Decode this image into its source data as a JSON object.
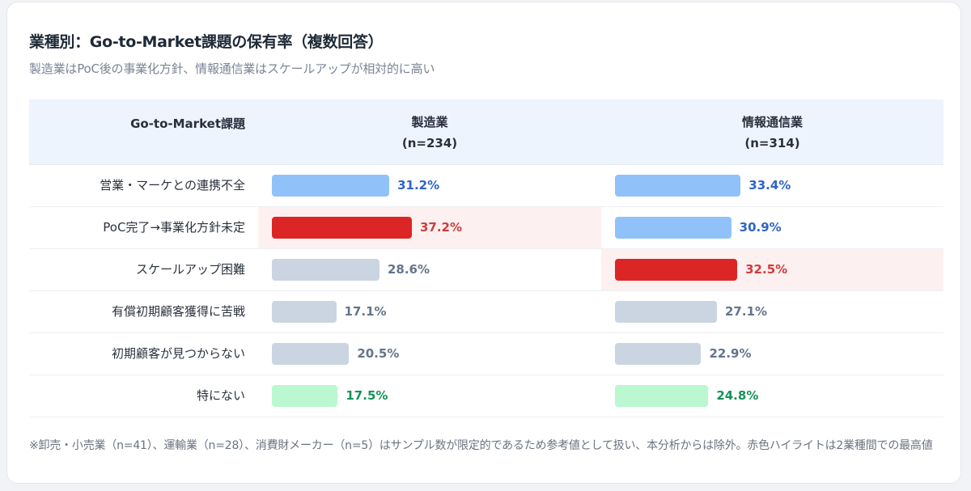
{
  "title": "業種別：Go-to-Market課題の保有率（複数回答）",
  "subtitle": "製造業はPoC後の事業化方針、情報通信業はスケールアップが相対的に高い",
  "table": {
    "header": {
      "label": "Go-to-Market課題",
      "col1_name": "製造業",
      "col1_n": "(n=234)",
      "col2_name": "情報通信業",
      "col2_n": "(n=314)"
    },
    "rows": [
      {
        "label": "営業・マーケとの連携不全",
        "c1": {
          "value": 31.2,
          "text": "31.2%",
          "style": "blue",
          "highlight": false
        },
        "c2": {
          "value": 33.4,
          "text": "33.4%",
          "style": "blue",
          "highlight": false
        }
      },
      {
        "label": "PoC完了→事業化方針未定",
        "c1": {
          "value": 37.2,
          "text": "37.2%",
          "style": "red",
          "highlight": true
        },
        "c2": {
          "value": 30.9,
          "text": "30.9%",
          "style": "blue",
          "highlight": false
        }
      },
      {
        "label": "スケールアップ困難",
        "c1": {
          "value": 28.6,
          "text": "28.6%",
          "style": "gray",
          "highlight": false
        },
        "c2": {
          "value": 32.5,
          "text": "32.5%",
          "style": "red",
          "highlight": true
        }
      },
      {
        "label": "有償初期顧客獲得に苦戦",
        "c1": {
          "value": 17.1,
          "text": "17.1%",
          "style": "gray",
          "highlight": false
        },
        "c2": {
          "value": 27.1,
          "text": "27.1%",
          "style": "gray",
          "highlight": false
        }
      },
      {
        "label": "初期顧客が見つからない",
        "c1": {
          "value": 20.5,
          "text": "20.5%",
          "style": "gray",
          "highlight": false
        },
        "c2": {
          "value": 22.9,
          "text": "22.9%",
          "style": "gray",
          "highlight": false
        }
      },
      {
        "label": "特にない",
        "c1": {
          "value": 17.5,
          "text": "17.5%",
          "style": "green",
          "highlight": false
        },
        "c2": {
          "value": 24.8,
          "text": "24.8%",
          "style": "green",
          "highlight": false
        }
      }
    ]
  },
  "colors": {
    "blue": {
      "bar": "#90c2f9",
      "text": "#2f63c8"
    },
    "red": {
      "bar": "#dc2626",
      "text": "#d13b3b"
    },
    "gray": {
      "bar": "#cbd5e1",
      "text": "#64748b"
    },
    "green": {
      "bar": "#bbf7d0",
      "text": "#15935a"
    },
    "highlight_bg": "#fdf0f0",
    "header_bg": "#eef4fd"
  },
  "footnote": "※卸売・小売業（n=41）、運輸業（n=28）、消費財メーカー（n=5）はサンプル数が限定的であるため参考値として扱い、本分析からは除外。赤色ハイライトは2業種間での最高値",
  "chart_data": {
    "type": "bar",
    "orientation": "horizontal",
    "title": "業種別：Go-to-Market課題の保有率（複数回答）",
    "subtitle": "製造業はPoC後の事業化方針、情報通信業はスケールアップが相対的に高い",
    "categories": [
      "営業・マーケとの連携不全",
      "PoC完了→事業化方針未定",
      "スケールアップ困難",
      "有償初期顧客獲得に苦戦",
      "初期顧客が見つからない",
      "特にない"
    ],
    "series": [
      {
        "name": "製造業 (n=234)",
        "values": [
          31.2,
          37.2,
          28.6,
          17.1,
          20.5,
          17.5
        ]
      },
      {
        "name": "情報通信業 (n=314)",
        "values": [
          33.4,
          30.9,
          32.5,
          27.1,
          22.9,
          24.8
        ]
      }
    ],
    "unit": "%",
    "xlabel": "",
    "ylabel": "Go-to-Market課題",
    "highlights": [
      {
        "category": "PoC完了→事業化方針未定",
        "series": "製造業 (n=234)"
      },
      {
        "category": "スケールアップ困難",
        "series": "情報通信業 (n=314)"
      }
    ],
    "annotation": "※卸売・小売業（n=41）、運輸業（n=28）、消費財メーカー（n=5）はサンプル数が限定的であるため参考値として扱い、本分析からは除外。赤色ハイライトは2業種間での最高値",
    "grid": false,
    "legend": "none (column headers)"
  }
}
